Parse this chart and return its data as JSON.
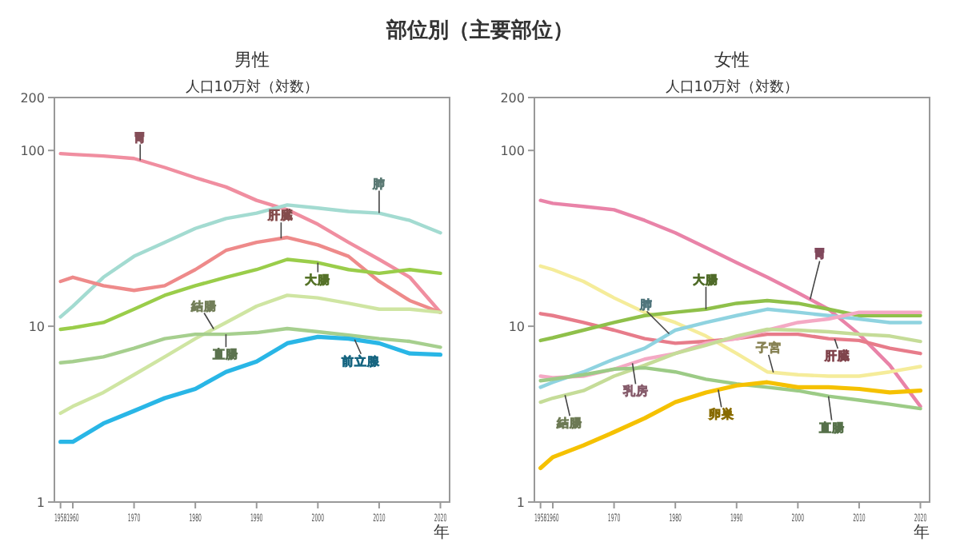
{
  "chart_data": [
    {
      "type": "line",
      "title": "男性",
      "ylabel": "人口10万対（対数）",
      "xlabel": "年",
      "annotations": [
        "部位別（主要部位）"
      ],
      "log": true,
      "legend": false,
      "grid": false,
      "x": [
        1958,
        1960,
        1965,
        1970,
        1975,
        1980,
        1985,
        1990,
        1995,
        2000,
        2005,
        2010,
        2015,
        2020
      ],
      "xlim": [
        1957,
        2021.5
      ],
      "xticks": [
        1958,
        1960,
        1970,
        1980,
        1990,
        2000,
        2010,
        2020
      ],
      "ylim": [
        1,
        200
      ],
      "yticks": [
        1,
        10,
        100,
        200
      ],
      "series": [
        {
          "name": "胃",
          "color": "#f08ea0",
          "values": [
            96,
            95,
            93,
            90,
            80,
            70,
            62,
            52,
            46,
            38,
            30,
            24,
            19,
            12
          ]
        },
        {
          "name": "肺",
          "color": "#a3dbd1",
          "values": [
            11.3,
            13,
            19,
            25,
            30,
            36,
            41,
            44,
            49,
            47,
            45,
            44,
            40,
            34
          ]
        },
        {
          "name": "肝臓",
          "color": "#ee8a8a",
          "values": [
            18,
            19,
            17,
            16,
            17,
            21,
            27,
            30,
            32,
            29,
            25,
            18,
            14,
            12
          ]
        },
        {
          "name": "大腸",
          "color": "#9acd4a",
          "values": [
            9.6,
            9.8,
            10.5,
            12.5,
            15,
            17,
            19,
            21,
            24,
            23,
            21,
            20,
            21,
            20
          ]
        },
        {
          "name": "結腸",
          "color": "#cfe5a2",
          "values": [
            3.2,
            3.5,
            4.2,
            5.3,
            6.7,
            8.5,
            10.5,
            13,
            15,
            14.5,
            13.5,
            12.5,
            12.5,
            12
          ]
        },
        {
          "name": "直腸",
          "color": "#a6cf8e",
          "values": [
            6.2,
            6.3,
            6.7,
            7.5,
            8.5,
            9,
            9,
            9.2,
            9.7,
            9.3,
            8.9,
            8.5,
            8.2,
            7.6
          ]
        },
        {
          "name": "前立腺",
          "color": "#29b6e6",
          "values": [
            2.2,
            2.2,
            2.8,
            3.3,
            3.9,
            4.4,
            5.5,
            6.3,
            8,
            8.7,
            8.5,
            8,
            7,
            6.9
          ]
        }
      ]
    },
    {
      "type": "line",
      "title": "女性",
      "ylabel": "人口10万対（対数）",
      "xlabel": "年",
      "log": true,
      "legend": false,
      "grid": false,
      "x": [
        1958,
        1960,
        1965,
        1970,
        1975,
        1980,
        1985,
        1990,
        1995,
        2000,
        2005,
        2010,
        2015,
        2020
      ],
      "xlim": [
        1957,
        2021.5
      ],
      "xticks": [
        1958,
        1960,
        1970,
        1980,
        1990,
        2000,
        2010,
        2020
      ],
      "ylim": [
        1,
        200
      ],
      "yticks": [
        1,
        10,
        100,
        200
      ],
      "series": [
        {
          "name": "胃",
          "color": "#e983a8",
          "values": [
            52,
            50,
            48,
            46,
            40,
            34,
            28,
            23,
            19,
            15.5,
            12.5,
            9,
            6,
            3.5
          ]
        },
        {
          "name": "子宮",
          "color": "#f5ec9a",
          "values": [
            22,
            21,
            18,
            14.5,
            12,
            10.5,
            8.8,
            7,
            5.5,
            5.3,
            5.2,
            5.2,
            5.5,
            5.9
          ]
        },
        {
          "name": "肝臓",
          "color": "#e77c8a",
          "values": [
            11.8,
            11.5,
            10.5,
            9.5,
            8.5,
            8,
            8.2,
            8.5,
            9,
            9,
            8.5,
            8.3,
            7.5,
            7
          ]
        },
        {
          "name": "大腸",
          "color": "#8fc04a",
          "values": [
            8.3,
            8.6,
            9.5,
            10.5,
            11.5,
            12,
            12.5,
            13.5,
            14,
            13.5,
            12.5,
            11.5,
            11.5,
            11.5
          ]
        },
        {
          "name": "肺",
          "color": "#8fd3e0",
          "values": [
            4.5,
            4.8,
            5.5,
            6.5,
            7.5,
            9.5,
            10.5,
            11.5,
            12.5,
            12,
            11.5,
            11,
            10.5,
            10.5
          ]
        },
        {
          "name": "乳房",
          "color": "#f4a9c4",
          "values": [
            5.2,
            5.1,
            5.2,
            5.7,
            6.5,
            7,
            8,
            8.5,
            9.5,
            10.5,
            11,
            12,
            12,
            12
          ]
        },
        {
          "name": "結腸",
          "color": "#c5dc98",
          "values": [
            3.7,
            3.9,
            4.3,
            5.2,
            6,
            7,
            7.8,
            8.8,
            9.6,
            9.5,
            9.3,
            9,
            8.8,
            8.2
          ]
        },
        {
          "name": "直腸",
          "color": "#9ccb86",
          "values": [
            4.9,
            5,
            5.3,
            5.7,
            5.8,
            5.5,
            5,
            4.7,
            4.5,
            4.3,
            4,
            3.8,
            3.6,
            3.4
          ]
        },
        {
          "name": "卵巣",
          "color": "#f5c100",
          "values": [
            1.56,
            1.8,
            2.1,
            2.5,
            3,
            3.7,
            4.2,
            4.6,
            4.8,
            4.5,
            4.5,
            4.4,
            4.2,
            4.3
          ]
        }
      ]
    }
  ]
}
